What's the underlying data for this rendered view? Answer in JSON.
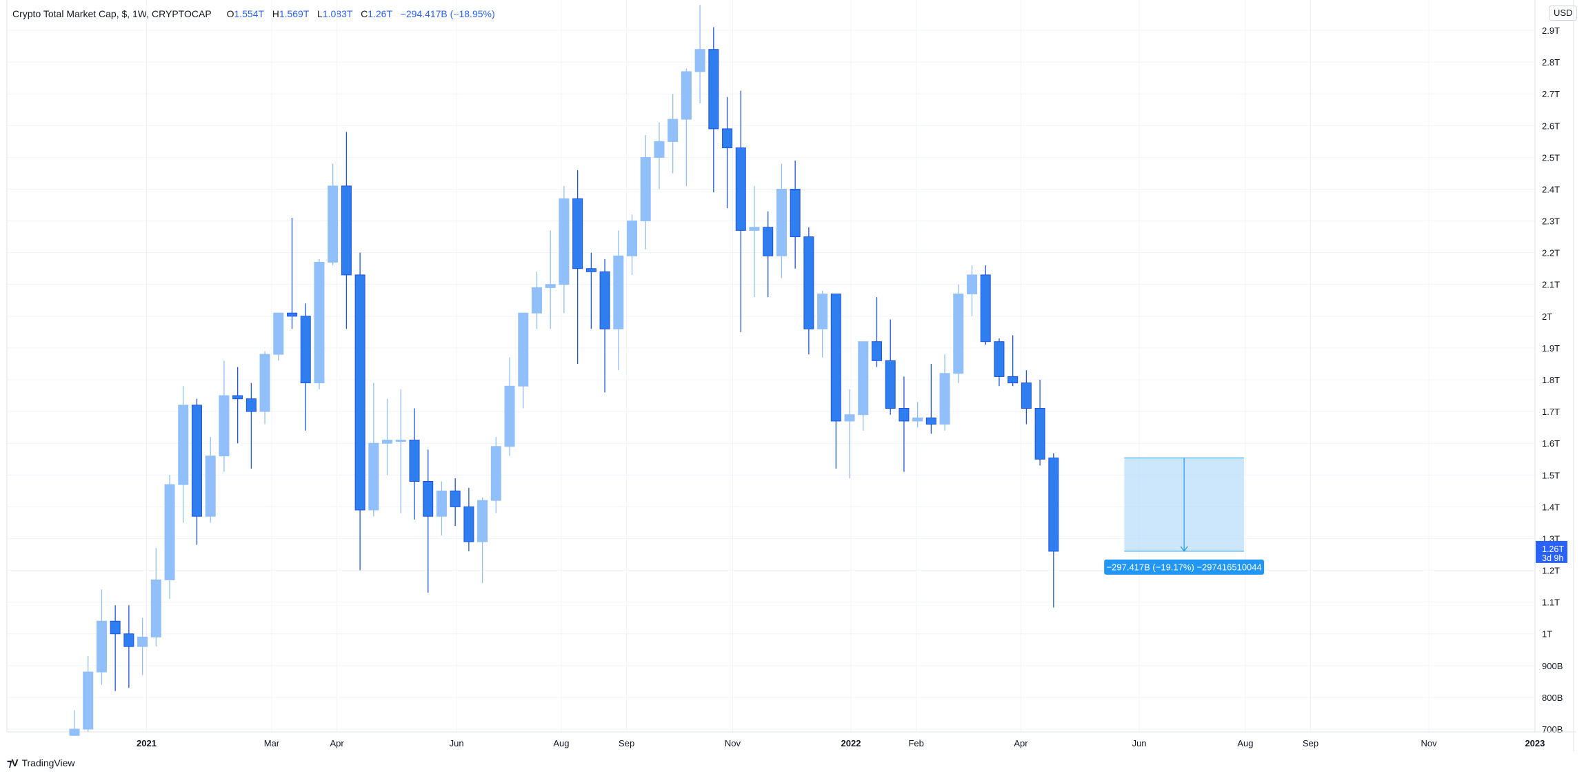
{
  "legend": {
    "symbol": "Crypto Total Market Cap, $, 1W, CRYPTOCAP",
    "open_label": "O",
    "open": "1.554T",
    "high_label": "H",
    "high": "1.569T",
    "low_label": "L",
    "low": "1.083T",
    "close_label": "C",
    "close": "1.26T",
    "change": "−294.417B (−18.95%)"
  },
  "currency": "USD",
  "footer": {
    "brand": "TradingView"
  },
  "colors": {
    "up": "#90bff9",
    "down": "#2962ff",
    "down_fill": "#2f7ef0",
    "grid": "#f0f3fa",
    "measure_fill": "#bbdefb",
    "measure_line": "#2196f3",
    "price_tag": "#2962ff"
  },
  "chart_data": {
    "type": "candlestick",
    "timeframe": "1W",
    "y_unit": "USD",
    "ylim": [
      680,
      2980
    ],
    "y_ticks": [
      {
        "value": 2900,
        "label": "2.9T"
      },
      {
        "value": 2800,
        "label": "2.8T"
      },
      {
        "value": 2700,
        "label": "2.7T"
      },
      {
        "value": 2600,
        "label": "2.6T"
      },
      {
        "value": 2500,
        "label": "2.5T"
      },
      {
        "value": 2400,
        "label": "2.4T"
      },
      {
        "value": 2300,
        "label": "2.3T"
      },
      {
        "value": 2200,
        "label": "2.2T"
      },
      {
        "value": 2100,
        "label": "2.1T"
      },
      {
        "value": 2000,
        "label": "2T"
      },
      {
        "value": 1900,
        "label": "1.9T"
      },
      {
        "value": 1800,
        "label": "1.8T"
      },
      {
        "value": 1700,
        "label": "1.7T"
      },
      {
        "value": 1600,
        "label": "1.6T"
      },
      {
        "value": 1500,
        "label": "1.5T"
      },
      {
        "value": 1400,
        "label": "1.4T"
      },
      {
        "value": 1300,
        "label": "1.3T"
      },
      {
        "value": 1200,
        "label": "1.2T"
      },
      {
        "value": 1100,
        "label": "1.1T"
      },
      {
        "value": 1000,
        "label": "1T"
      },
      {
        "value": 900,
        "label": "900B"
      },
      {
        "value": 800,
        "label": "800B"
      },
      {
        "value": 700,
        "label": "700B"
      }
    ],
    "x_ticks": [
      {
        "index": 5.3,
        "label": "2021",
        "bold": true
      },
      {
        "index": 14.5,
        "label": "Mar"
      },
      {
        "index": 19.3,
        "label": "Apr"
      },
      {
        "index": 28.1,
        "label": "Jun"
      },
      {
        "index": 35.8,
        "label": "Aug"
      },
      {
        "index": 40.6,
        "label": "Sep"
      },
      {
        "index": 48.4,
        "label": "Nov"
      },
      {
        "index": 57.1,
        "label": "2022",
        "bold": true
      },
      {
        "index": 61.9,
        "label": "Feb"
      },
      {
        "index": 69.6,
        "label": "Apr"
      },
      {
        "index": 78.3,
        "label": "Jun"
      },
      {
        "index": 86.1,
        "label": "Aug"
      },
      {
        "index": 90.9,
        "label": "Sep"
      },
      {
        "index": 99.6,
        "label": "Nov"
      },
      {
        "index": 107.4,
        "label": "2023",
        "bold": true
      }
    ],
    "candles": [
      {
        "o": 680,
        "h": 760,
        "l": 680,
        "c": 700
      },
      {
        "o": 700,
        "h": 930,
        "l": 690,
        "c": 880
      },
      {
        "o": 880,
        "h": 1140,
        "l": 840,
        "c": 1040
      },
      {
        "o": 1040,
        "h": 1090,
        "l": 820,
        "c": 1000
      },
      {
        "o": 1000,
        "h": 1090,
        "l": 830,
        "c": 960
      },
      {
        "o": 960,
        "h": 1050,
        "l": 870,
        "c": 990
      },
      {
        "o": 990,
        "h": 1270,
        "l": 960,
        "c": 1170
      },
      {
        "o": 1170,
        "h": 1500,
        "l": 1110,
        "c": 1470
      },
      {
        "o": 1470,
        "h": 1780,
        "l": 1350,
        "c": 1720
      },
      {
        "o": 1720,
        "h": 1740,
        "l": 1280,
        "c": 1370
      },
      {
        "o": 1370,
        "h": 1620,
        "l": 1350,
        "c": 1560
      },
      {
        "o": 1560,
        "h": 1860,
        "l": 1510,
        "c": 1750
      },
      {
        "o": 1750,
        "h": 1840,
        "l": 1600,
        "c": 1740
      },
      {
        "o": 1740,
        "h": 1790,
        "l": 1520,
        "c": 1700
      },
      {
        "o": 1700,
        "h": 1890,
        "l": 1660,
        "c": 1880
      },
      {
        "o": 1880,
        "h": 2010,
        "l": 1860,
        "c": 2010
      },
      {
        "o": 2010,
        "h": 2310,
        "l": 1960,
        "c": 2000
      },
      {
        "o": 2000,
        "h": 2040,
        "l": 1640,
        "c": 1790
      },
      {
        "o": 1790,
        "h": 2180,
        "l": 1770,
        "c": 2170
      },
      {
        "o": 2170,
        "h": 2480,
        "l": 2160,
        "c": 2410
      },
      {
        "o": 2410,
        "h": 2580,
        "l": 1960,
        "c": 2130
      },
      {
        "o": 2130,
        "h": 2200,
        "l": 1200,
        "c": 1390
      },
      {
        "o": 1390,
        "h": 1790,
        "l": 1370,
        "c": 1600
      },
      {
        "o": 1600,
        "h": 1740,
        "l": 1500,
        "c": 1610
      },
      {
        "o": 1610,
        "h": 1770,
        "l": 1380,
        "c": 1610
      },
      {
        "o": 1610,
        "h": 1710,
        "l": 1360,
        "c": 1480
      },
      {
        "o": 1480,
        "h": 1580,
        "l": 1130,
        "c": 1370
      },
      {
        "o": 1370,
        "h": 1480,
        "l": 1310,
        "c": 1450
      },
      {
        "o": 1450,
        "h": 1490,
        "l": 1340,
        "c": 1400
      },
      {
        "o": 1400,
        "h": 1460,
        "l": 1260,
        "c": 1290
      },
      {
        "o": 1290,
        "h": 1430,
        "l": 1160,
        "c": 1420
      },
      {
        "o": 1420,
        "h": 1620,
        "l": 1380,
        "c": 1590
      },
      {
        "o": 1590,
        "h": 1870,
        "l": 1560,
        "c": 1780
      },
      {
        "o": 1780,
        "h": 2010,
        "l": 1710,
        "c": 2010
      },
      {
        "o": 2010,
        "h": 2140,
        "l": 1960,
        "c": 2090
      },
      {
        "o": 2090,
        "h": 2270,
        "l": 1960,
        "c": 2100
      },
      {
        "o": 2100,
        "h": 2410,
        "l": 2010,
        "c": 2370
      },
      {
        "o": 2370,
        "h": 2460,
        "l": 1850,
        "c": 2150
      },
      {
        "o": 2150,
        "h": 2200,
        "l": 1960,
        "c": 2140
      },
      {
        "o": 2140,
        "h": 2180,
        "l": 1760,
        "c": 1960
      },
      {
        "o": 1960,
        "h": 2270,
        "l": 1830,
        "c": 2190
      },
      {
        "o": 2190,
        "h": 2320,
        "l": 2130,
        "c": 2300
      },
      {
        "o": 2300,
        "h": 2570,
        "l": 2210,
        "c": 2500
      },
      {
        "o": 2500,
        "h": 2610,
        "l": 2400,
        "c": 2550
      },
      {
        "o": 2550,
        "h": 2700,
        "l": 2450,
        "c": 2620
      },
      {
        "o": 2620,
        "h": 2780,
        "l": 2410,
        "c": 2770
      },
      {
        "o": 2770,
        "h": 2980,
        "l": 2670,
        "c": 2840
      },
      {
        "o": 2840,
        "h": 2910,
        "l": 2390,
        "c": 2590
      },
      {
        "o": 2590,
        "h": 2690,
        "l": 2340,
        "c": 2530
      },
      {
        "o": 2530,
        "h": 2710,
        "l": 1950,
        "c": 2270
      },
      {
        "o": 2270,
        "h": 2410,
        "l": 2060,
        "c": 2280
      },
      {
        "o": 2280,
        "h": 2330,
        "l": 2060,
        "c": 2190
      },
      {
        "o": 2190,
        "h": 2480,
        "l": 2120,
        "c": 2400
      },
      {
        "o": 2400,
        "h": 2490,
        "l": 2150,
        "c": 2250
      },
      {
        "o": 2250,
        "h": 2280,
        "l": 1880,
        "c": 1960
      },
      {
        "o": 1960,
        "h": 2080,
        "l": 1870,
        "c": 2070
      },
      {
        "o": 2070,
        "h": 2070,
        "l": 1520,
        "c": 1670
      },
      {
        "o": 1670,
        "h": 1770,
        "l": 1490,
        "c": 1690
      },
      {
        "o": 1690,
        "h": 1920,
        "l": 1640,
        "c": 1920
      },
      {
        "o": 1920,
        "h": 2060,
        "l": 1840,
        "c": 1860
      },
      {
        "o": 1860,
        "h": 1990,
        "l": 1690,
        "c": 1710
      },
      {
        "o": 1710,
        "h": 1810,
        "l": 1510,
        "c": 1670
      },
      {
        "o": 1670,
        "h": 1730,
        "l": 1650,
        "c": 1680
      },
      {
        "o": 1680,
        "h": 1850,
        "l": 1630,
        "c": 1660
      },
      {
        "o": 1660,
        "h": 1880,
        "l": 1640,
        "c": 1820
      },
      {
        "o": 1820,
        "h": 2100,
        "l": 1790,
        "c": 2070
      },
      {
        "o": 2070,
        "h": 2160,
        "l": 2000,
        "c": 2130
      },
      {
        "o": 2130,
        "h": 2160,
        "l": 1910,
        "c": 1920
      },
      {
        "o": 1920,
        "h": 1930,
        "l": 1780,
        "c": 1810
      },
      {
        "o": 1810,
        "h": 1940,
        "l": 1780,
        "c": 1790
      },
      {
        "o": 1790,
        "h": 1830,
        "l": 1660,
        "c": 1710
      },
      {
        "o": 1710,
        "h": 1800,
        "l": 1530,
        "c": 1550
      },
      {
        "o": 1554,
        "h": 1569,
        "l": 1083,
        "c": 1260
      }
    ],
    "price_tag": {
      "value": 1260,
      "label": "1.26T",
      "countdown": "3d 9h"
    },
    "measure": {
      "start_index": 77.2,
      "end_index": 86.0,
      "from": 1554,
      "to": 1260,
      "label": "−297.417B (−19.17%) −297416510044"
    }
  }
}
